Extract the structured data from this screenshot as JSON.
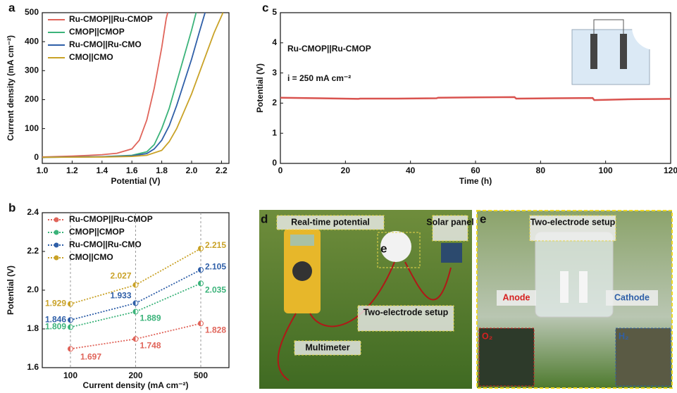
{
  "chart_data": [
    {
      "type": "line",
      "panel": "a",
      "xlabel": "Potential (V)",
      "ylabel": "Current density (mA cm⁻²)",
      "xlim": [
        1.0,
        2.25
      ],
      "ylim": [
        -20,
        500
      ],
      "xticks": [
        {
          "value": 1,
          "label": "1.0"
        },
        1.2,
        1.4,
        1.6,
        1.8,
        {
          "value": 2,
          "label": "2.0"
        },
        2.2
      ],
      "yticks": [
        0,
        100,
        200,
        300,
        400,
        500
      ],
      "legend": "upper-left",
      "series": [
        {
          "name": "Ru-CMOP||Ru-CMOP",
          "color": "#e0645a",
          "x": [
            1.0,
            1.2,
            1.4,
            1.5,
            1.6,
            1.65,
            1.7,
            1.75,
            1.8,
            1.83,
            1.84
          ],
          "values": [
            2,
            5,
            10,
            15,
            30,
            60,
            130,
            240,
            380,
            480,
            500
          ]
        },
        {
          "name": "CMOP||CMOP",
          "color": "#3bb37a",
          "x": [
            1.0,
            1.4,
            1.6,
            1.7,
            1.75,
            1.8,
            1.85,
            1.9,
            1.95,
            2.0,
            2.03
          ],
          "values": [
            1,
            3,
            8,
            20,
            45,
            100,
            170,
            260,
            350,
            440,
            500
          ]
        },
        {
          "name": "Ru-CMO||Ru-CMO",
          "color": "#2f5fa8",
          "x": [
            1.0,
            1.4,
            1.6,
            1.7,
            1.75,
            1.8,
            1.85,
            1.9,
            1.95,
            2.0,
            2.05,
            2.09
          ],
          "values": [
            1,
            3,
            6,
            14,
            30,
            60,
            110,
            180,
            260,
            340,
            430,
            500
          ]
        },
        {
          "name": "CMO||CMO",
          "color": "#c9a227",
          "x": [
            1.0,
            1.4,
            1.6,
            1.7,
            1.8,
            1.85,
            1.9,
            1.95,
            2.0,
            2.05,
            2.1,
            2.15,
            2.21
          ],
          "values": [
            1,
            2,
            4,
            8,
            25,
            55,
            100,
            160,
            220,
            290,
            360,
            430,
            500
          ]
        }
      ]
    },
    {
      "type": "dotline",
      "panel": "b",
      "xlabel": "Current density (mA cm⁻²)",
      "ylabel": "Potential (V)",
      "categories": [
        100,
        200,
        500
      ],
      "ylim": [
        1.6,
        2.4
      ],
      "yticks": [
        1.6,
        1.8,
        {
          "value": 2,
          "label": "2.0"
        },
        2.2,
        2.4
      ],
      "grid": true,
      "legend": "upper-left",
      "series": [
        {
          "name": "Ru-CMOP||Ru-CMOP",
          "color": "#e0645a",
          "values": [
            1.697,
            1.748,
            1.828
          ]
        },
        {
          "name": "CMOP||CMOP",
          "color": "#3bb37a",
          "values": [
            1.809,
            1.889,
            2.035
          ]
        },
        {
          "name": "Ru-CMO||Ru-CMO",
          "color": "#2f5fa8",
          "values": [
            1.846,
            1.933,
            2.105
          ]
        },
        {
          "name": "CMO||CMO",
          "color": "#c9a227",
          "values": [
            1.929,
            2.027,
            2.215
          ]
        }
      ]
    },
    {
      "type": "line",
      "panel": "c",
      "xlabel": "Time (h)",
      "ylabel": "Potential (V)",
      "xlim": [
        0,
        120
      ],
      "ylim": [
        0,
        5
      ],
      "xticks": [
        0,
        20,
        40,
        60,
        80,
        100,
        120
      ],
      "yticks": [
        0,
        1,
        2,
        3,
        4,
        5
      ],
      "annotations": [
        "Ru-CMOP||Ru-CMOP",
        "i = 250 mA cm⁻²"
      ],
      "series": [
        {
          "color": "#d9534f",
          "x": [
            0,
            12,
            24,
            24.5,
            36,
            48,
            48.5,
            60,
            72,
            72.5,
            84,
            96,
            96.5,
            108,
            120
          ],
          "values": [
            2.18,
            2.16,
            2.14,
            2.15,
            2.15,
            2.16,
            2.18,
            2.19,
            2.2,
            2.15,
            2.16,
            2.17,
            2.1,
            2.13,
            2.14
          ]
        }
      ]
    }
  ],
  "photo_panels": [
    {
      "panel": "d",
      "labels": [
        "Real-time potential",
        "Solar panel",
        "e",
        "Two-electrode setup",
        "Multimeter"
      ]
    },
    {
      "panel": "e",
      "labels": [
        "Two-electrode setup",
        "Anode",
        "Cathode",
        "O₂",
        "H₂"
      ]
    }
  ]
}
